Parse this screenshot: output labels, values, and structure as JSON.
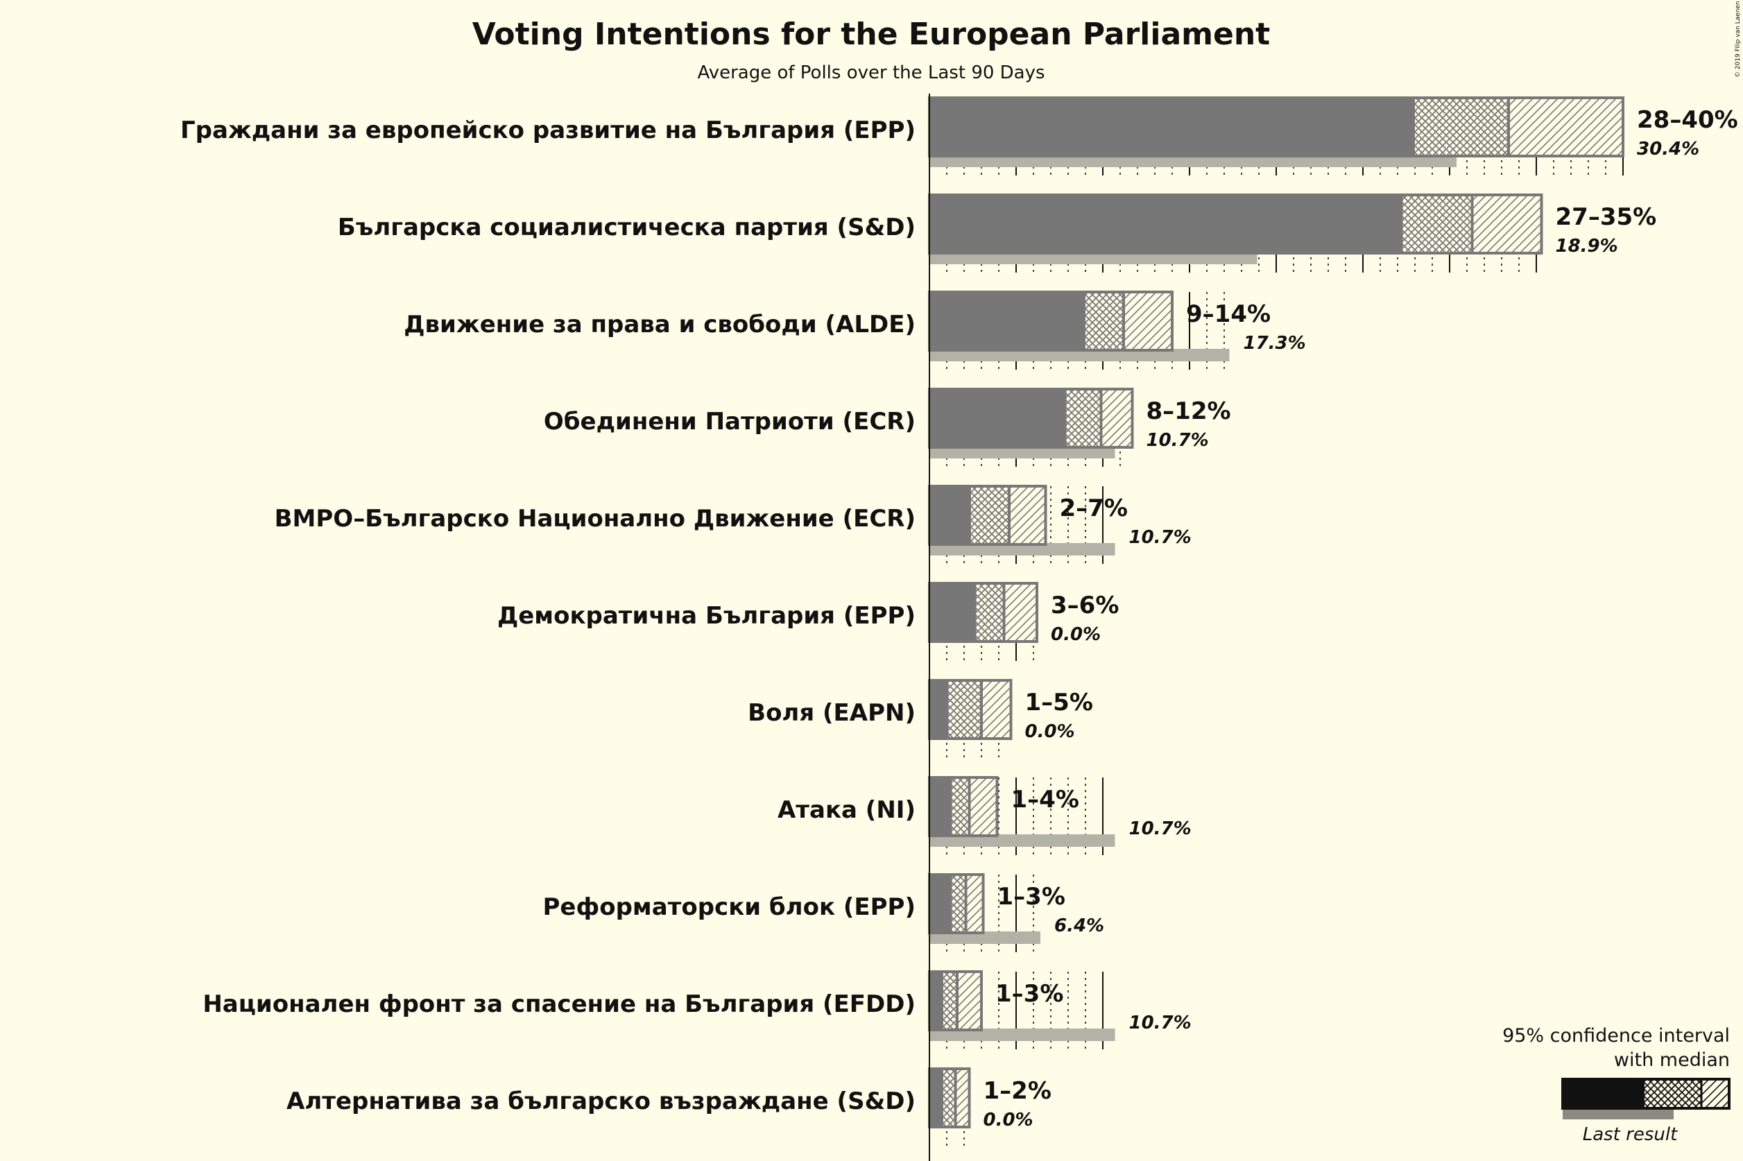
{
  "title": "Voting Intentions for the European Parliament",
  "subtitle": "Average of Polls over the Last 90 Days",
  "copyright": "© 2019 Filip van Laenen",
  "legend": {
    "line1": "95% confidence interval",
    "line2": "with median",
    "last_result": "Last result"
  },
  "colors": {
    "background": "#fffde7",
    "bar": "#777777",
    "last_result": "#b3b2a6",
    "legend_bar": "#111111",
    "last_label": "#8a8a80"
  },
  "chart_data": {
    "type": "bar",
    "orientation": "horizontal",
    "unit": "%",
    "xlim": [
      0,
      40
    ],
    "gridlines": "dotted every 1%, solid every 5%",
    "parties": [
      {
        "name": "Граждани за европейско развитие на България (EPP)",
        "low": 28,
        "median": 33.4,
        "high": 40,
        "range_label": "28–40%",
        "last": 30.4,
        "last_label": "30.4%"
      },
      {
        "name": "Българска социалистическа партия (S&D)",
        "low": 27.3,
        "median": 31.3,
        "high": 35.3,
        "range_label": "27–35%",
        "last": 18.9,
        "last_label": "18.9%"
      },
      {
        "name": "Движение за права и свободи (ALDE)",
        "low": 9,
        "median": 11.2,
        "high": 14,
        "range_label": "9–14%",
        "last": 17.3,
        "last_label": "17.3%"
      },
      {
        "name": "Обединени Патриоти (ECR)",
        "low": 7.9,
        "median": 9.9,
        "high": 11.7,
        "range_label": "8–12%",
        "last": 10.7,
        "last_label": "10.7%"
      },
      {
        "name": "ВМРО–Българско Национално Движение (ECR)",
        "low": 2.4,
        "median": 4.6,
        "high": 6.7,
        "range_label": "2–7%",
        "last": 10.7,
        "last_label": "10.7%"
      },
      {
        "name": "Демократична България (EPP)",
        "low": 2.7,
        "median": 4.3,
        "high": 6.2,
        "range_label": "3–6%",
        "last": 0.0,
        "last_label": "0.0%"
      },
      {
        "name": "Воля (EAPN)",
        "low": 1.1,
        "median": 3.0,
        "high": 4.7,
        "range_label": "1–5%",
        "last": 0.0,
        "last_label": "0.0%"
      },
      {
        "name": "Атака (NI)",
        "low": 1.3,
        "median": 2.3,
        "high": 3.9,
        "range_label": "1–4%",
        "last": 10.7,
        "last_label": "10.7%"
      },
      {
        "name": "Реформаторски блок (EPP)",
        "low": 1.3,
        "median": 2.1,
        "high": 3.1,
        "range_label": "1–3%",
        "last": 6.4,
        "last_label": "6.4%"
      },
      {
        "name": "Национален фронт за спасение на България (EFDD)",
        "low": 0.8,
        "median": 1.6,
        "high": 3.0,
        "range_label": "1–3%",
        "last": 10.7,
        "last_label": "10.7%"
      },
      {
        "name": "Алтернатива за българско възраждане (S&D)",
        "low": 0.8,
        "median": 1.5,
        "high": 2.3,
        "range_label": "1–2%",
        "last": 0.0,
        "last_label": "0.0%"
      }
    ]
  }
}
